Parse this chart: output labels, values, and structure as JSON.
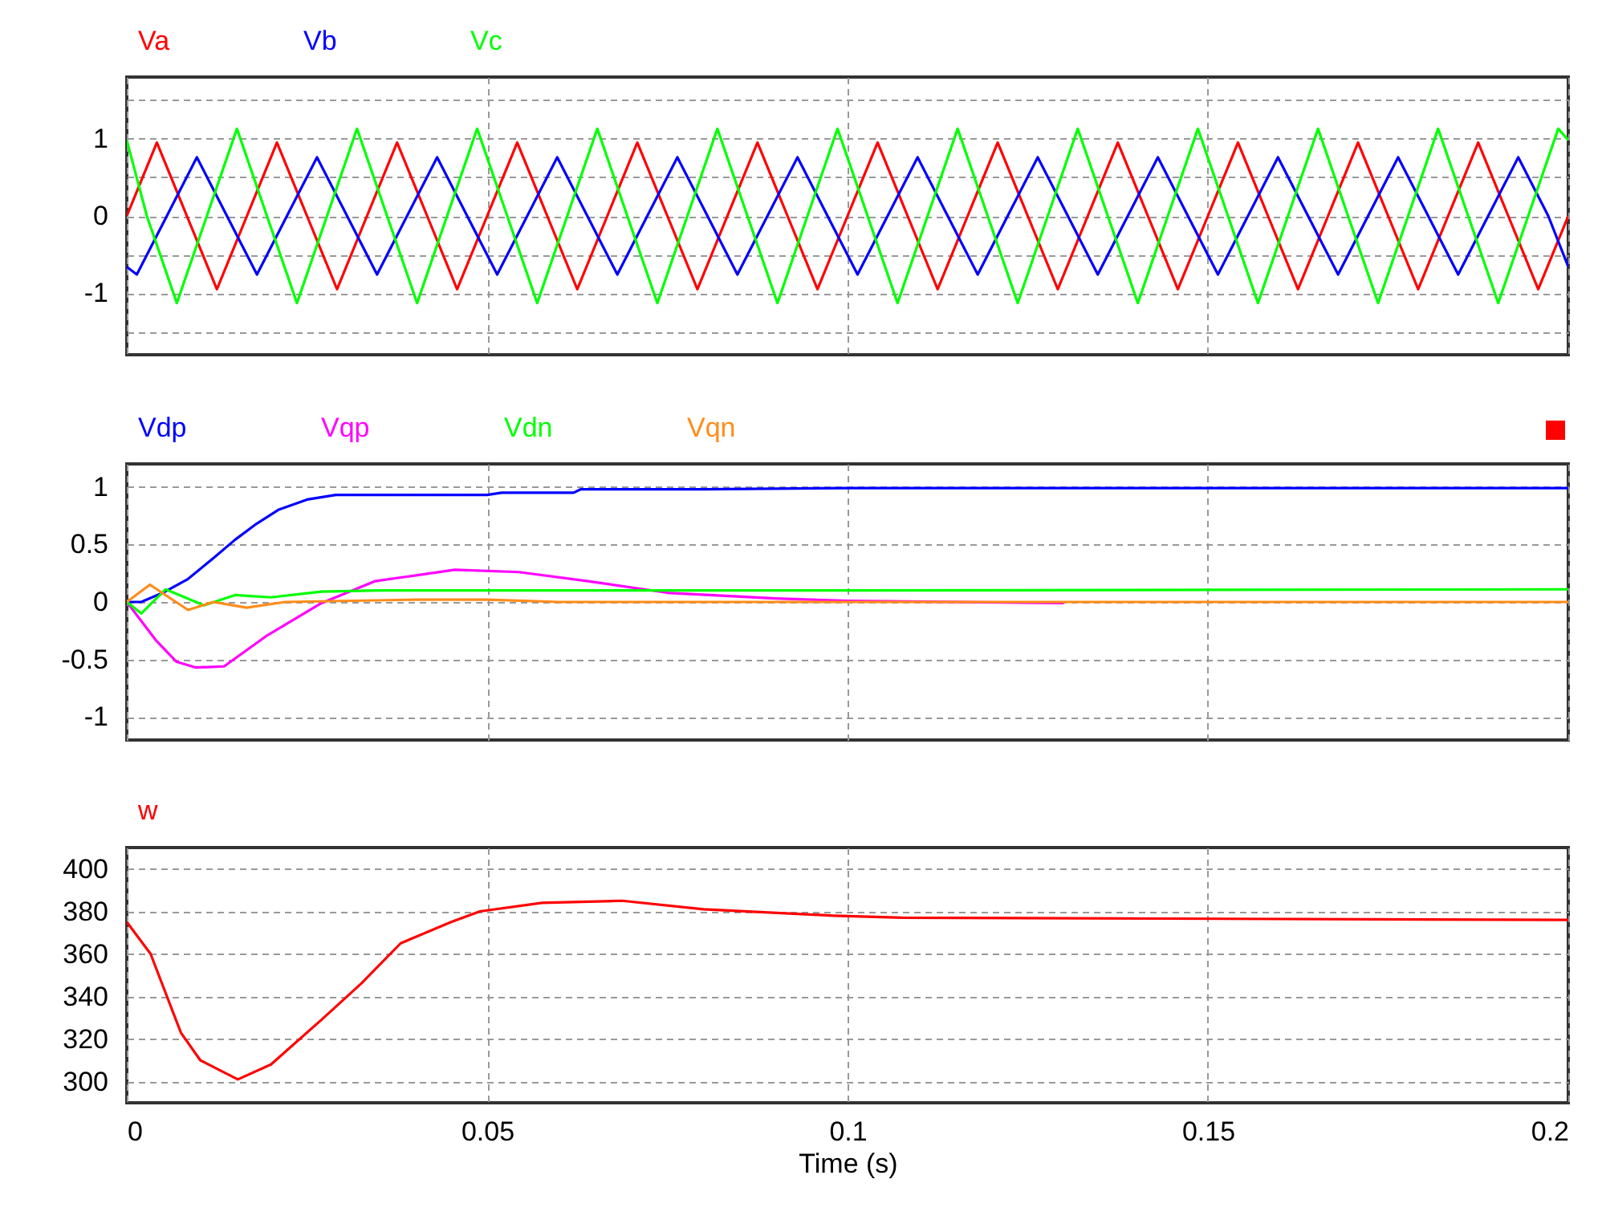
{
  "chart_data": [
    {
      "type": "line",
      "grid": true,
      "tick_labels": "y",
      "xlim": [
        0,
        0.2
      ],
      "xticks": [
        0,
        0.05,
        0.1,
        0.15,
        0.2
      ],
      "ylim": [
        -1.8,
        1.8
      ],
      "yticks": [
        {
          "value": -1.5,
          "label": null
        },
        -1,
        {
          "value": -0.5,
          "label": null
        },
        0,
        {
          "value": 0.5,
          "label": null
        },
        1,
        {
          "value": 1.5,
          "label": null
        }
      ],
      "series": [
        {
          "name": "Va",
          "color": "#ff0000",
          "x": [
            0,
            0.00417,
            0.00833,
            0.0125,
            0.01667,
            0.02083,
            0.025,
            0.02917,
            0.03333,
            0.0375,
            0.04167,
            0.04583,
            0.05,
            0.05417,
            0.05833,
            0.0625,
            0.06667,
            0.07083,
            0.075,
            0.07917,
            0.08333,
            0.0875,
            0.09167,
            0.09583,
            0.1,
            0.10417,
            0.10833,
            0.1125,
            0.11667,
            0.12083,
            0.125,
            0.12917,
            0.13333,
            0.1375,
            0.14167,
            0.14583,
            0.15,
            0.15417,
            0.15833,
            0.1625,
            0.16667,
            0.17083,
            0.175,
            0.17917,
            0.18333,
            0.1875,
            0.19167,
            0.19583,
            0.2
          ],
          "values": [
            0,
            0.95,
            0,
            -0.95,
            0,
            0.95,
            0,
            -0.95,
            0,
            0.95,
            0,
            -0.95,
            0,
            0.95,
            0,
            -0.95,
            0,
            0.95,
            0,
            -0.95,
            0,
            0.95,
            0,
            -0.95,
            0,
            0.95,
            0,
            -0.95,
            0,
            0.95,
            0,
            -0.95,
            0,
            0.95,
            0,
            -0.95,
            0,
            0.95,
            0,
            -0.95,
            0,
            0.95,
            0,
            -0.95,
            0,
            0.95,
            0,
            -0.95,
            0
          ]
        },
        {
          "name": "Vb",
          "color": "#0000ff",
          "x": [
            0,
            0.00139,
            0.00556,
            0.00972,
            0.01389,
            0.01806,
            0.02222,
            0.02639,
            0.03056,
            0.03472,
            0.03889,
            0.04306,
            0.04722,
            0.05139,
            0.05556,
            0.05972,
            0.06389,
            0.06806,
            0.07222,
            0.07639,
            0.08056,
            0.08472,
            0.08889,
            0.09306,
            0.09722,
            0.10139,
            0.10556,
            0.10972,
            0.11389,
            0.11806,
            0.12222,
            0.12639,
            0.13056,
            0.13472,
            0.13889,
            0.14306,
            0.14722,
            0.15139,
            0.15556,
            0.15972,
            0.16389,
            0.16806,
            0.17222,
            0.17639,
            0.18056,
            0.18472,
            0.18889,
            0.19306,
            0.19722,
            0.2
          ],
          "values": [
            -0.66,
            -0.76,
            0,
            0.76,
            0,
            -0.76,
            0,
            0.76,
            0,
            -0.76,
            0,
            0.76,
            0,
            -0.76,
            0,
            0.76,
            0,
            -0.76,
            0,
            0.76,
            0,
            -0.76,
            0,
            0.76,
            0,
            -0.76,
            0,
            0.76,
            0,
            -0.76,
            0,
            0.76,
            0,
            -0.76,
            0,
            0.76,
            0,
            -0.76,
            0,
            0.76,
            0,
            -0.76,
            0,
            0.76,
            0,
            -0.76,
            0,
            0.76,
            0,
            -0.66
          ]
        },
        {
          "name": "Vc",
          "color": "#00ff00",
          "x": [
            0,
            0.00278,
            0.00694,
            0.01111,
            0.01528,
            0.01944,
            0.02361,
            0.02778,
            0.03194,
            0.03611,
            0.04028,
            0.04444,
            0.04861,
            0.05278,
            0.05694,
            0.06111,
            0.06528,
            0.06944,
            0.07361,
            0.07778,
            0.08194,
            0.08611,
            0.09028,
            0.09444,
            0.09861,
            0.10278,
            0.10694,
            0.11111,
            0.11528,
            0.11944,
            0.12361,
            0.12778,
            0.13194,
            0.13611,
            0.14028,
            0.14444,
            0.14861,
            0.15278,
            0.15694,
            0.16111,
            0.16528,
            0.16944,
            0.17361,
            0.17778,
            0.18194,
            0.18611,
            0.19028,
            0.19444,
            0.19861,
            0.2
          ],
          "values": [
            0.98,
            0,
            -1.13,
            0,
            1.13,
            0,
            -1.13,
            0,
            1.13,
            0,
            -1.13,
            0,
            1.13,
            0,
            -1.13,
            0,
            1.13,
            0,
            -1.13,
            0,
            1.13,
            0,
            -1.13,
            0,
            1.13,
            0,
            -1.13,
            0,
            1.13,
            0,
            -1.13,
            0,
            1.13,
            0,
            -1.13,
            0,
            1.13,
            0,
            -1.13,
            0,
            1.13,
            0,
            -1.13,
            0,
            1.13,
            0,
            -1.13,
            0,
            1.13,
            0.98
          ]
        }
      ]
    },
    {
      "type": "line",
      "grid": true,
      "tick_labels": "y",
      "xlim": [
        0,
        0.2
      ],
      "xticks": [
        0,
        0.05,
        0.1,
        0.15,
        0.2
      ],
      "ylim": [
        -1.2,
        1.2
      ],
      "yticks": [
        -1,
        -0.5,
        0,
        0.5,
        1
      ],
      "series": [
        {
          "name": "Vdp",
          "color": "#0000ff",
          "x": [
            0,
            0.002,
            0.005,
            0.0085,
            0.012,
            0.015,
            0.018,
            0.021,
            0.025,
            0.029,
            0.05,
            0.052,
            0.062,
            0.063,
            0.08,
            0.1,
            0.2
          ],
          "values": [
            0,
            0,
            0.08,
            0.2,
            0.38,
            0.54,
            0.68,
            0.8,
            0.89,
            0.93,
            0.93,
            0.95,
            0.95,
            0.98,
            0.98,
            0.99,
            0.99
          ]
        },
        {
          "name": "Vqp",
          "color": "#ff00ff",
          "x": [
            0,
            0.004,
            0.0069,
            0.0096,
            0.0135,
            0.0195,
            0.027,
            0.0344,
            0.0455,
            0.0544,
            0.064,
            0.075,
            0.09,
            0.1,
            0.13
          ],
          "values": [
            0,
            -0.33,
            -0.52,
            -0.57,
            -0.56,
            -0.29,
            -0.01,
            0.18,
            0.28,
            0.26,
            0.18,
            0.08,
            0.03,
            0.01,
            -0.01
          ]
        },
        {
          "name": "Vdn",
          "color": "#00ff00",
          "x": [
            0,
            0.002,
            0.0054,
            0.0107,
            0.015,
            0.02,
            0.027,
            0.035,
            0.1,
            0.2
          ],
          "values": [
            0,
            -0.1,
            0.11,
            -0.03,
            0.06,
            0.04,
            0.09,
            0.1,
            0.1,
            0.11
          ]
        },
        {
          "name": "Vqn",
          "color": "#ff8c1a",
          "x": [
            0,
            0.0032,
            0.0085,
            0.012,
            0.0166,
            0.022,
            0.04,
            0.05,
            0.06,
            0.2
          ],
          "values": [
            0,
            0.15,
            -0.07,
            0,
            -0.05,
            0,
            0.02,
            0.02,
            0,
            0
          ]
        }
      ]
    },
    {
      "type": "line",
      "grid": true,
      "xlabel": "Time (s)",
      "xlim": [
        0,
        0.2
      ],
      "xticks": [
        0,
        0.05,
        0.1,
        0.15,
        0.2
      ],
      "ylim": [
        290,
        410
      ],
      "yticks": [
        300,
        320,
        340,
        360,
        380,
        400
      ],
      "series": [
        {
          "name": "w",
          "color": "#ff0000",
          "x": [
            0,
            0.0033,
            0.0075,
            0.0102,
            0.0154,
            0.02,
            0.027,
            0.0325,
            0.038,
            0.045,
            0.049,
            0.0576,
            0.0687,
            0.08,
            0.098,
            0.1076,
            0.2
          ],
          "values": [
            375,
            360,
            323,
            310,
            301,
            308,
            329,
            346,
            365,
            375,
            380,
            384,
            385,
            381,
            378,
            377,
            376
          ]
        }
      ]
    }
  ]
}
